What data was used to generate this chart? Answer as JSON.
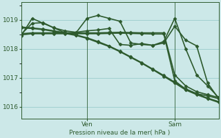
{
  "background_color": "#cce8e8",
  "grid_color": "#99cccc",
  "line_color": "#2d5a2d",
  "title": "Pression niveau de la mer( hPa )",
  "ylabel_ticks": [
    1016,
    1017,
    1018,
    1019
  ],
  "ylim": [
    1015.6,
    1019.6
  ],
  "xlim": [
    0,
    36
  ],
  "ven_x": 12,
  "sam_x": 28,
  "series": [
    {
      "x": [
        0,
        2,
        4,
        6,
        8,
        10,
        12,
        14,
        16,
        18,
        20,
        22,
        24,
        26,
        28,
        30,
        32,
        34,
        36
      ],
      "y": [
        1018.75,
        1018.72,
        1018.68,
        1018.62,
        1018.55,
        1018.48,
        1018.38,
        1018.25,
        1018.1,
        1017.92,
        1017.72,
        1017.52,
        1017.3,
        1017.08,
        1016.85,
        1016.62,
        1016.45,
        1016.3,
        1016.18
      ],
      "marker": "D",
      "markersize": 2.5,
      "linewidth": 1.2
    },
    {
      "x": [
        0,
        2,
        4,
        6,
        8,
        10,
        12,
        14,
        16,
        18,
        20,
        22,
        24,
        26,
        28,
        30,
        32,
        34,
        36
      ],
      "y": [
        1018.52,
        1018.55,
        1018.55,
        1018.55,
        1018.55,
        1018.55,
        1018.55,
        1018.55,
        1018.56,
        1018.57,
        1018.56,
        1018.55,
        1018.55,
        1018.55,
        1017.1,
        1016.72,
        1016.52,
        1016.42,
        1016.32
      ],
      "marker": "D",
      "markersize": 2.5,
      "linewidth": 1.2
    },
    {
      "x": [
        0,
        2,
        4,
        6,
        8,
        10,
        12,
        14,
        16,
        18,
        20,
        22,
        24,
        26,
        28,
        30,
        32,
        34,
        36
      ],
      "y": [
        1018.48,
        1018.52,
        1018.52,
        1018.52,
        1018.52,
        1018.52,
        1018.52,
        1018.52,
        1018.53,
        1018.54,
        1018.53,
        1018.52,
        1018.51,
        1018.51,
        1016.9,
        1016.6,
        1016.45,
        1016.38,
        1016.28
      ],
      "marker": "D",
      "markersize": 2.5,
      "linewidth": 1.2
    },
    {
      "x": [
        0,
        2,
        4,
        6,
        8,
        10,
        12,
        14,
        16,
        18,
        20,
        22,
        24,
        26,
        28,
        30,
        32,
        34,
        36
      ],
      "y": [
        1018.5,
        1018.88,
        1018.9,
        1018.72,
        1018.55,
        1018.55,
        1019.05,
        1019.15,
        1019.05,
        1018.95,
        1018.2,
        1018.15,
        1018.12,
        1018.25,
        1019.05,
        1018.0,
        1017.1,
        1016.72,
        1016.32
      ],
      "marker": "D",
      "markersize": 2.5,
      "linewidth": 1.2
    },
    {
      "x": [
        0,
        2,
        4,
        6,
        8,
        10,
        12,
        14,
        16,
        18,
        20,
        22,
        24,
        26,
        28,
        30,
        32,
        34,
        36
      ],
      "y": [
        1018.45,
        1019.05,
        1018.88,
        1018.72,
        1018.62,
        1018.57,
        1018.62,
        1018.65,
        1018.7,
        1018.15,
        1018.12,
        1018.18,
        1018.12,
        1018.2,
        1018.78,
        1018.3,
        1018.1,
        1016.82,
        1016.28
      ],
      "marker": "D",
      "markersize": 2.5,
      "linewidth": 1.2
    },
    {
      "x": [
        0,
        2,
        4,
        6,
        8,
        10,
        12,
        14,
        16,
        18,
        20,
        22,
        24,
        26,
        28,
        30,
        32,
        34,
        36
      ],
      "y": [
        1018.72,
        1018.7,
        1018.66,
        1018.6,
        1018.53,
        1018.46,
        1018.36,
        1018.22,
        1018.08,
        1017.9,
        1017.7,
        1017.5,
        1017.28,
        1017.05,
        1016.82,
        1016.58,
        1016.42,
        1016.28,
        1016.15
      ],
      "marker": "D",
      "markersize": 2.5,
      "linewidth": 1.2
    }
  ]
}
